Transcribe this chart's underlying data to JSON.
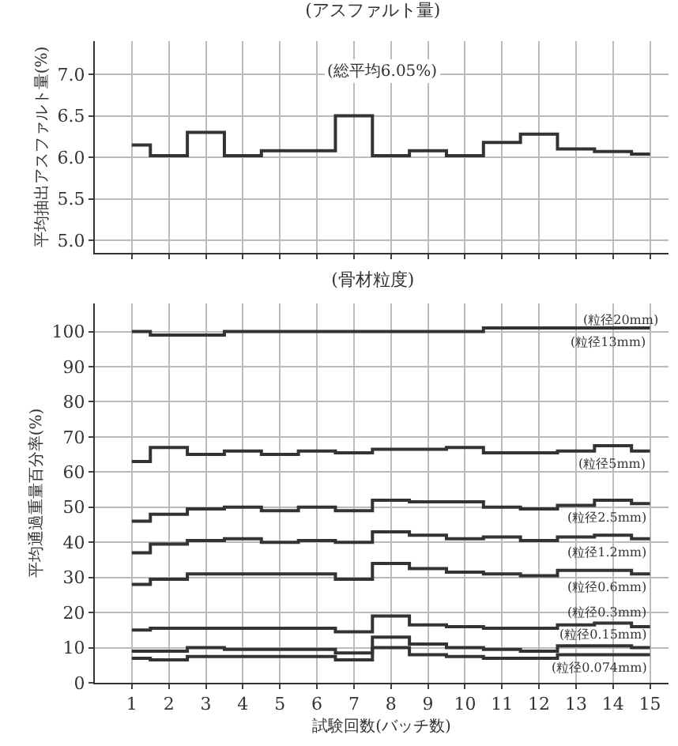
{
  "chart_data": [
    {
      "type": "step",
      "title": "(アスファルト量)",
      "ylabel": "平均抽出アスファルト量(%)",
      "annotations": [
        "(総平均6.05%)"
      ],
      "x": [
        1,
        2,
        3,
        4,
        5,
        6,
        7,
        8,
        9,
        10,
        11,
        12,
        13,
        14,
        15
      ],
      "xlim": [
        0,
        15.5
      ],
      "xticks": [
        1,
        2,
        3,
        4,
        5,
        6,
        7,
        8,
        9,
        10,
        11,
        12,
        13,
        14,
        15
      ],
      "ylim": [
        4.85,
        7.4
      ],
      "yticks": [
        {
          "value": 5,
          "label": "5.0"
        },
        5.5,
        {
          "value": 6,
          "label": "6.0"
        },
        6.5,
        {
          "value": 7,
          "label": "7.0"
        }
      ],
      "grid": true,
      "tick_labels": "y",
      "series": [
        {
          "color": "#333333",
          "values": [
            6.15,
            6.02,
            6.3,
            6.02,
            6.08,
            6.08,
            6.5,
            6.02,
            6.08,
            6.02,
            6.18,
            6.28,
            6.1,
            6.07,
            6.04
          ]
        }
      ]
    },
    {
      "type": "step",
      "title": "(骨材粒度)",
      "xlabel": "試験回数(バッチ数)",
      "ylabel": "平均通過重量百分率(%)",
      "annotations": [
        "(粒径20mm)"
      ],
      "x": [
        1,
        2,
        3,
        4,
        5,
        6,
        7,
        8,
        9,
        10,
        11,
        12,
        13,
        14,
        15
      ],
      "xlim": [
        0,
        15.5
      ],
      "xticks": [
        1,
        2,
        3,
        4,
        5,
        6,
        7,
        8,
        9,
        10,
        11,
        12,
        13,
        14,
        15
      ],
      "ylim": [
        0,
        108
      ],
      "yticks": [
        0,
        10,
        20,
        30,
        40,
        50,
        60,
        70,
        80,
        90,
        100
      ],
      "grid": true,
      "series": [
        {
          "name": "(粒径13mm)",
          "color": "#333333",
          "values": [
            100,
            99,
            99,
            100,
            100,
            100,
            100,
            100,
            100,
            100,
            101,
            101,
            101,
            101,
            101
          ]
        },
        {
          "name": "(粒径5mm)",
          "color": "#333333",
          "values": [
            63,
            67,
            65,
            66,
            65,
            66,
            65.5,
            66.5,
            66.5,
            67,
            65.5,
            65.5,
            66,
            67.5,
            66
          ]
        },
        {
          "name": "(粒径2.5mm)",
          "color": "#333333",
          "values": [
            46,
            48,
            49.5,
            50,
            49,
            50,
            49,
            52,
            51.5,
            51.5,
            50,
            49.5,
            50.5,
            52,
            51
          ]
        },
        {
          "name": "(粒径1.2mm)",
          "color": "#333333",
          "values": [
            37,
            39.5,
            40.5,
            41,
            40,
            40.5,
            40,
            43,
            42,
            41,
            41.5,
            40.5,
            41.5,
            42,
            41
          ]
        },
        {
          "name": "(粒径0.6mm)",
          "color": "#333333",
          "values": [
            28,
            29.5,
            31,
            31,
            31,
            31,
            29.5,
            34,
            32.5,
            31.5,
            31,
            30.5,
            32,
            32,
            31
          ]
        },
        {
          "name": "(粒径0.3mm)",
          "color": "#333333",
          "values": [
            15,
            15.5,
            15.5,
            15.5,
            15.5,
            15.5,
            14.5,
            19,
            16.5,
            16,
            15.5,
            15.5,
            16.5,
            17,
            16
          ]
        },
        {
          "name": "(粒径0.15mm)",
          "color": "#333333",
          "values": [
            9,
            9,
            10,
            9.5,
            9.5,
            9.5,
            8.5,
            13,
            11,
            10,
            9.5,
            9,
            10.5,
            10.5,
            10
          ]
        },
        {
          "name": "(粒径0.074mm)",
          "color": "#333333",
          "values": [
            7,
            6.5,
            7.5,
            7.5,
            7.5,
            7.5,
            6.5,
            10,
            8,
            7.5,
            7,
            7,
            8,
            8,
            8
          ]
        }
      ]
    }
  ]
}
